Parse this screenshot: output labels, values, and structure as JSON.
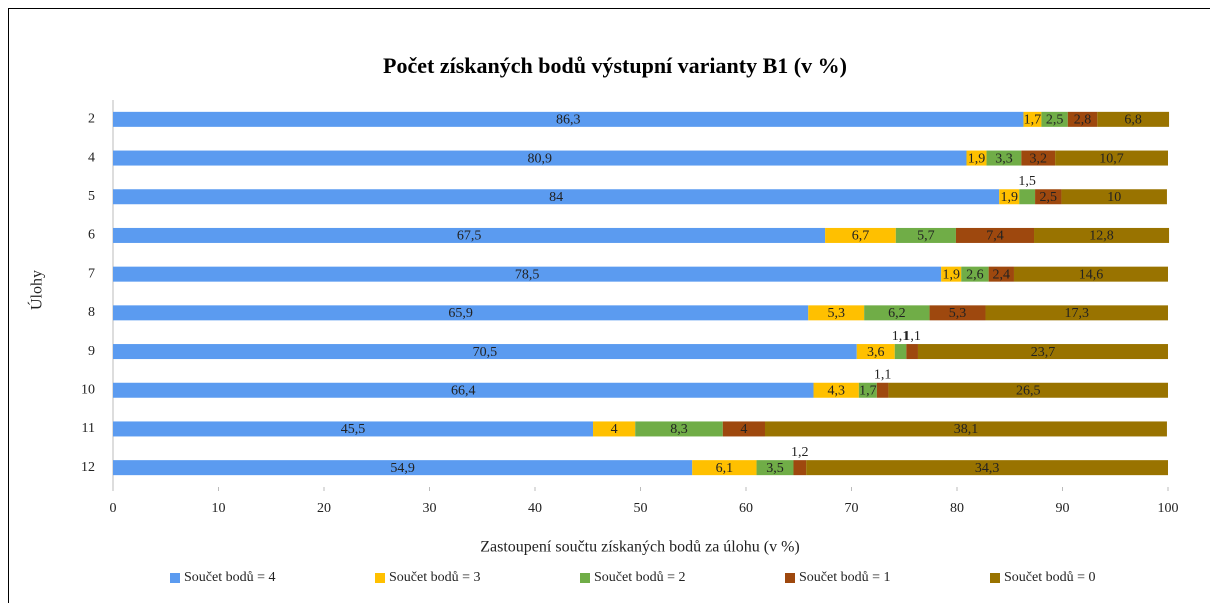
{
  "chart_data": {
    "type": "stacked-barh",
    "title": "Počet získaných  bodů výstupní varianty B1 (v %)",
    "xlabel": "Zastoupení součtu získaných  bodů za úlohu (v %)",
    "ylabel": "Úlohy",
    "categories": [
      "2",
      "4",
      "5",
      "6",
      "7",
      "8",
      "9",
      "10",
      "11",
      "12"
    ],
    "series": [
      {
        "name": "Součet bodů = 4",
        "color": "#5b9bf0",
        "values": [
          86.3,
          80.9,
          84,
          67.5,
          78.5,
          65.9,
          70.5,
          66.4,
          45.5,
          54.9
        ],
        "value_labels": [
          "86,3",
          "80,9",
          "84",
          "67,5",
          "78,5",
          "65,9",
          "70,5",
          "66,4",
          "45,5",
          "54,9"
        ]
      },
      {
        "name": "Součet bodů = 3",
        "color": "#ffc000",
        "values": [
          1.7,
          1.9,
          1.9,
          6.7,
          1.9,
          5.3,
          3.6,
          4.3,
          4,
          6.1
        ],
        "value_labels": [
          "1,7",
          "1,9",
          "1,9",
          "6,7",
          "1,9",
          "5,3",
          "3,6",
          "4,3",
          "4",
          "6,1"
        ]
      },
      {
        "name": "Součet bodů = 2",
        "color": "#70ad47",
        "values": [
          2.5,
          3.3,
          1.5,
          5.7,
          2.6,
          6.2,
          1.1,
          1.7,
          8.3,
          3.5
        ],
        "value_labels": [
          "2,5",
          "3,3",
          "1,5",
          "5,7",
          "2,6",
          "6,2",
          "1,1",
          "1,7",
          "8,3",
          "3,5"
        ]
      },
      {
        "name": "Součet bodů = 1",
        "color": "#9e480e",
        "values": [
          2.8,
          3.2,
          2.5,
          7.4,
          2.4,
          5.3,
          1.1,
          1.1,
          4,
          1.2
        ],
        "value_labels": [
          "2,8",
          "3,2",
          "2,5",
          "7,4",
          "2,4",
          "5,3",
          "1,1",
          "1,1",
          "4",
          "1,2"
        ]
      },
      {
        "name": "Součet bodů = 0",
        "color": "#997300",
        "values": [
          6.8,
          10.7,
          10,
          12.8,
          14.6,
          17.3,
          23.7,
          26.5,
          38.1,
          34.3
        ],
        "value_labels": [
          "6,8",
          "10,7",
          "10",
          "12,8",
          "14,6",
          "17,3",
          "23,7",
          "26,5",
          "38,1",
          "34,3"
        ]
      }
    ],
    "xlim": [
      0,
      100
    ],
    "xticks": [
      0,
      10,
      20,
      30,
      40,
      50,
      60,
      70,
      80,
      90,
      100
    ],
    "legend": "bottom"
  }
}
